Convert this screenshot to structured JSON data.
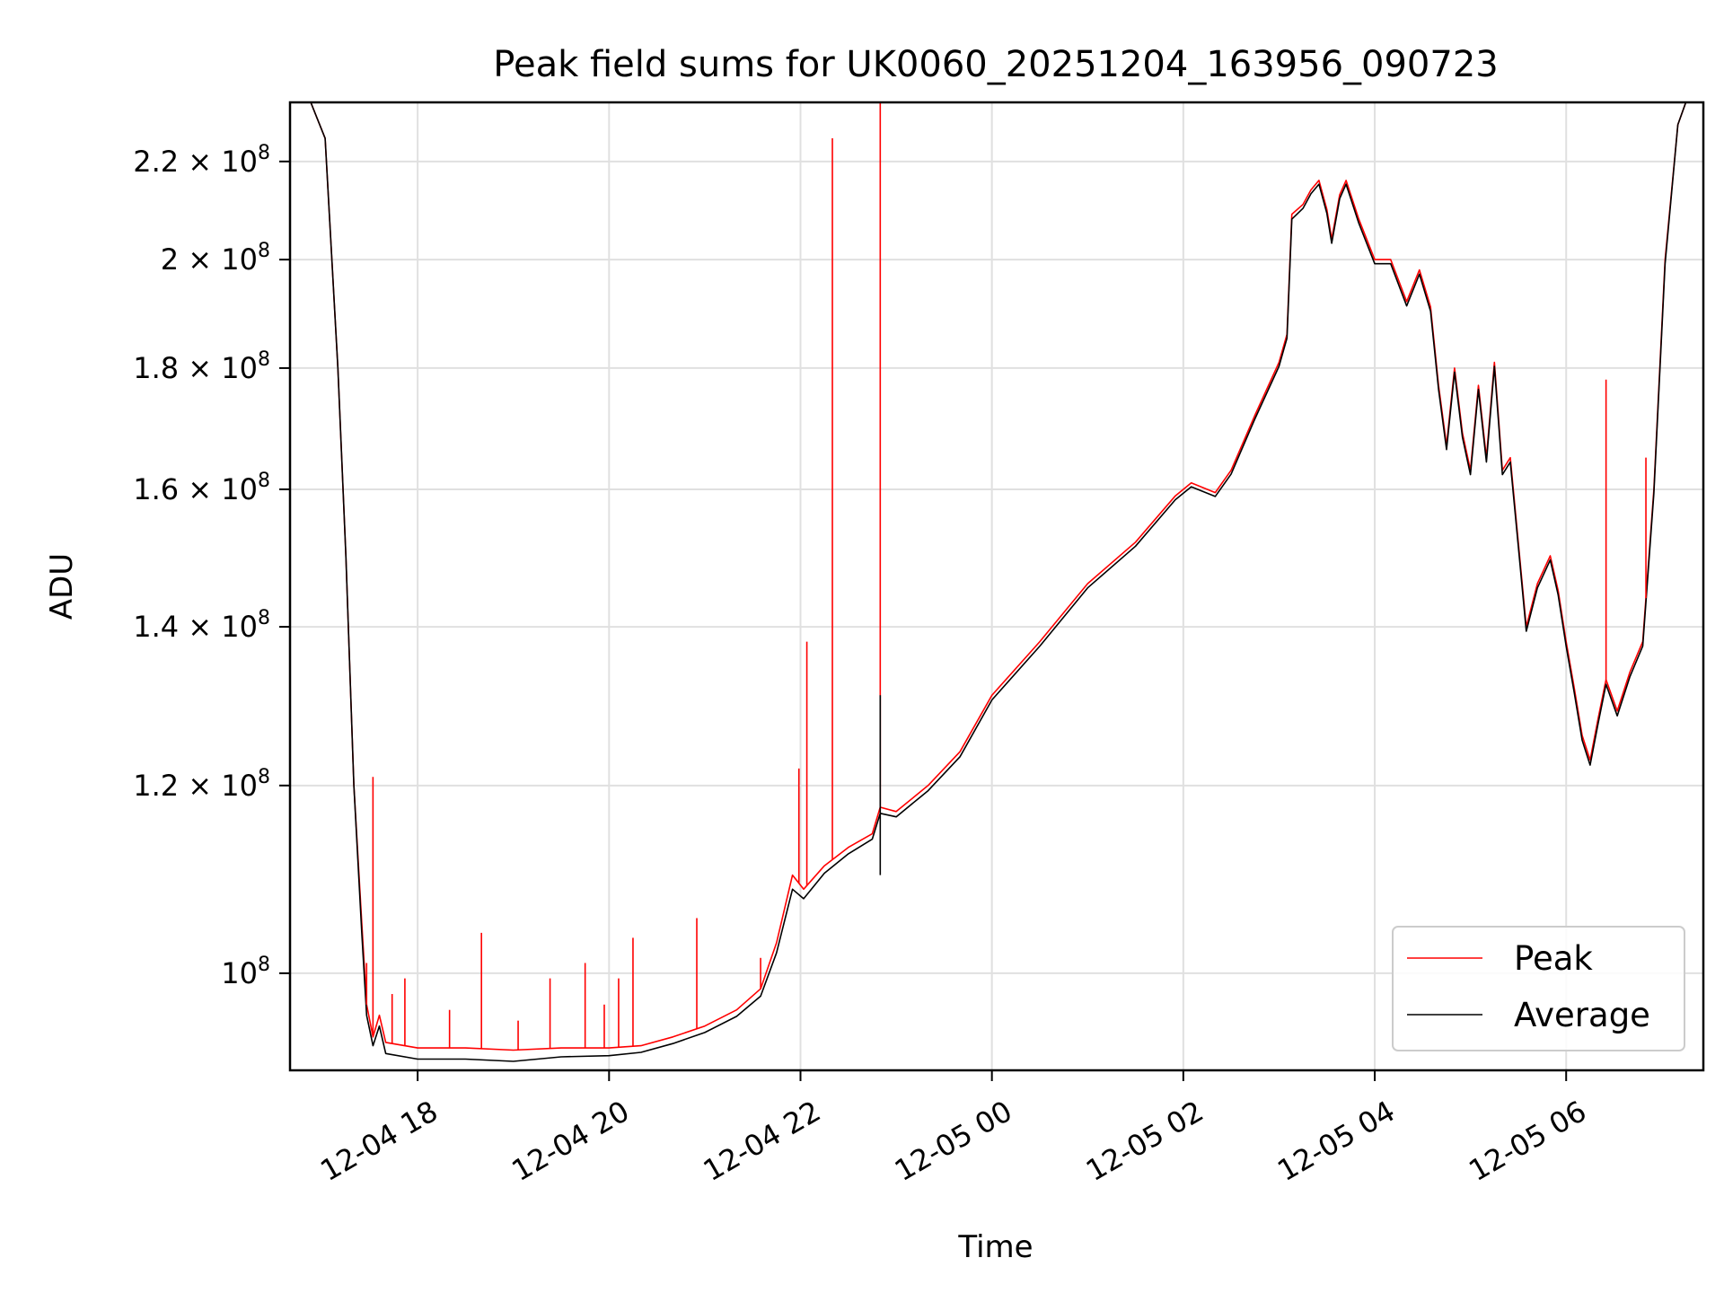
{
  "chart_data": {
    "type": "line",
    "title": "Peak field sums for UK0060_20251204_163956_090723",
    "xlabel": "Time",
    "ylabel": "ADU",
    "yscale": "log",
    "grid": true,
    "legend_position": "lower right",
    "x_range": [
      "2025-12-04 16:40",
      "2025-12-05 07:26"
    ],
    "ylim": [
      91000000,
      233000000
    ],
    "x_ticks": [
      {
        "value": "2025-12-04 18:00",
        "label": "12-04 18"
      },
      {
        "value": "2025-12-04 20:00",
        "label": "12-04 20"
      },
      {
        "value": "2025-12-04 22:00",
        "label": "12-04 22"
      },
      {
        "value": "2025-12-05 00:00",
        "label": "12-05 00"
      },
      {
        "value": "2025-12-05 02:00",
        "label": "12-05 02"
      },
      {
        "value": "2025-12-05 04:00",
        "label": "12-05 04"
      },
      {
        "value": "2025-12-05 06:00",
        "label": "12-05 06"
      }
    ],
    "y_ticks": [
      {
        "value": 100000000,
        "base": "10",
        "exp": "8"
      },
      {
        "value": 120000000,
        "base": "1.2 × 10",
        "exp": "8"
      },
      {
        "value": 140000000,
        "base": "1.4 × 10",
        "exp": "8"
      },
      {
        "value": 160000000,
        "base": "1.6 × 10",
        "exp": "8"
      },
      {
        "value": 180000000,
        "base": "1.8 × 10",
        "exp": "8"
      },
      {
        "value": 200000000,
        "base": "2 × 10",
        "exp": "8"
      },
      {
        "value": 220000000,
        "base": "2.2 × 10",
        "exp": "8"
      }
    ],
    "series": [
      {
        "name": "Peak",
        "color": "#ff0000",
        "points": [
          [
            "2025-12-04 16:40",
            233000000
          ],
          [
            "2025-12-04 16:53",
            233000000
          ],
          [
            "2025-12-04 17:02",
            225000000
          ],
          [
            "2025-12-04 17:10",
            180000000
          ],
          [
            "2025-12-04 17:15",
            150000000
          ],
          [
            "2025-12-04 17:20",
            120000000
          ],
          [
            "2025-12-04 17:25",
            105000000
          ],
          [
            "2025-12-04 17:28",
            97000000
          ],
          [
            "2025-12-04 17:32",
            94000000
          ],
          [
            "2025-12-04 17:36",
            96000000
          ],
          [
            "2025-12-04 17:40",
            93500000
          ],
          [
            "2025-12-04 18:00",
            93000000
          ],
          [
            "2025-12-04 18:30",
            93000000
          ],
          [
            "2025-12-04 19:00",
            92800000
          ],
          [
            "2025-12-04 19:30",
            93000000
          ],
          [
            "2025-12-04 20:00",
            93000000
          ],
          [
            "2025-12-04 20:20",
            93200000
          ],
          [
            "2025-12-04 20:40",
            94000000
          ],
          [
            "2025-12-04 21:00",
            95000000
          ],
          [
            "2025-12-04 21:20",
            96500000
          ],
          [
            "2025-12-04 21:35",
            98500000
          ],
          [
            "2025-12-04 21:45",
            103000000
          ],
          [
            "2025-12-04 21:55",
            110000000
          ],
          [
            "2025-12-04 22:02",
            108500000
          ],
          [
            "2025-12-04 22:15",
            111000000
          ],
          [
            "2025-12-04 22:30",
            113000000
          ],
          [
            "2025-12-04 22:45",
            114500000
          ],
          [
            "2025-12-04 22:50",
            117500000
          ],
          [
            "2025-12-04 23:00",
            117000000
          ],
          [
            "2025-12-04 23:20",
            120000000
          ],
          [
            "2025-12-04 23:40",
            124000000
          ],
          [
            "2025-12-05 00:00",
            131000000
          ],
          [
            "2025-12-05 00:30",
            138000000
          ],
          [
            "2025-12-05 01:00",
            146000000
          ],
          [
            "2025-12-05 01:30",
            152000000
          ],
          [
            "2025-12-05 01:55",
            159000000
          ],
          [
            "2025-12-05 02:05",
            161000000
          ],
          [
            "2025-12-05 02:20",
            159500000
          ],
          [
            "2025-12-05 02:30",
            163000000
          ],
          [
            "2025-12-05 02:45",
            172000000
          ],
          [
            "2025-12-05 03:00",
            181000000
          ],
          [
            "2025-12-05 03:05",
            186000000
          ],
          [
            "2025-12-05 03:08",
            209000000
          ],
          [
            "2025-12-05 03:15",
            211000000
          ],
          [
            "2025-12-05 03:20",
            214000000
          ],
          [
            "2025-12-05 03:25",
            216000000
          ],
          [
            "2025-12-05 03:30",
            210000000
          ],
          [
            "2025-12-05 03:33",
            204000000
          ],
          [
            "2025-12-05 03:38",
            213000000
          ],
          [
            "2025-12-05 03:42",
            216000000
          ],
          [
            "2025-12-05 03:50",
            208000000
          ],
          [
            "2025-12-05 04:00",
            200000000
          ],
          [
            "2025-12-05 04:10",
            200000000
          ],
          [
            "2025-12-05 04:20",
            192000000
          ],
          [
            "2025-12-05 04:28",
            198000000
          ],
          [
            "2025-12-05 04:35",
            191000000
          ],
          [
            "2025-12-05 04:40",
            177000000
          ],
          [
            "2025-12-05 04:45",
            167000000
          ],
          [
            "2025-12-05 04:50",
            180000000
          ],
          [
            "2025-12-05 04:55",
            169000000
          ],
          [
            "2025-12-05 05:00",
            163000000
          ],
          [
            "2025-12-05 05:05",
            177000000
          ],
          [
            "2025-12-05 05:10",
            165000000
          ],
          [
            "2025-12-05 05:15",
            181000000
          ],
          [
            "2025-12-05 05:20",
            163000000
          ],
          [
            "2025-12-05 05:25",
            165000000
          ],
          [
            "2025-12-05 05:30",
            152000000
          ],
          [
            "2025-12-05 05:35",
            140000000
          ],
          [
            "2025-12-05 05:42",
            146000000
          ],
          [
            "2025-12-05 05:50",
            150000000
          ],
          [
            "2025-12-05 05:55",
            145000000
          ],
          [
            "2025-12-05 06:00",
            138000000
          ],
          [
            "2025-12-05 06:05",
            132000000
          ],
          [
            "2025-12-05 06:10",
            126000000
          ],
          [
            "2025-12-05 06:15",
            123000000
          ],
          [
            "2025-12-05 06:20",
            128000000
          ],
          [
            "2025-12-05 06:25",
            133000000
          ],
          [
            "2025-12-05 06:32",
            129000000
          ],
          [
            "2025-12-05 06:40",
            134000000
          ],
          [
            "2025-12-05 06:48",
            138000000
          ],
          [
            "2025-12-05 06:55",
            160000000
          ],
          [
            "2025-12-05 07:02",
            200000000
          ],
          [
            "2025-12-05 07:10",
            228000000
          ],
          [
            "2025-12-05 07:15",
            233000000
          ],
          [
            "2025-12-05 07:26",
            233000000
          ]
        ]
      },
      {
        "name": "Average",
        "color": "#000000",
        "points": [
          [
            "2025-12-04 16:40",
            233000000
          ],
          [
            "2025-12-04 16:53",
            233000000
          ],
          [
            "2025-12-04 17:02",
            225000000
          ],
          [
            "2025-12-04 17:10",
            180000000
          ],
          [
            "2025-12-04 17:15",
            150000000
          ],
          [
            "2025-12-04 17:20",
            120000000
          ],
          [
            "2025-12-04 17:25",
            104000000
          ],
          [
            "2025-12-04 17:28",
            96000000
          ],
          [
            "2025-12-04 17:32",
            93200000
          ],
          [
            "2025-12-04 17:36",
            95000000
          ],
          [
            "2025-12-04 17:40",
            92500000
          ],
          [
            "2025-12-04 18:00",
            92000000
          ],
          [
            "2025-12-04 18:30",
            92000000
          ],
          [
            "2025-12-04 19:00",
            91800000
          ],
          [
            "2025-12-04 19:30",
            92200000
          ],
          [
            "2025-12-04 20:00",
            92300000
          ],
          [
            "2025-12-04 20:20",
            92600000
          ],
          [
            "2025-12-04 20:40",
            93400000
          ],
          [
            "2025-12-04 21:00",
            94400000
          ],
          [
            "2025-12-04 21:20",
            95900000
          ],
          [
            "2025-12-04 21:35",
            97800000
          ],
          [
            "2025-12-04 21:45",
            102000000
          ],
          [
            "2025-12-04 21:55",
            108500000
          ],
          [
            "2025-12-04 22:02",
            107500000
          ],
          [
            "2025-12-04 22:15",
            110200000
          ],
          [
            "2025-12-04 22:30",
            112300000
          ],
          [
            "2025-12-04 22:45",
            113900000
          ],
          [
            "2025-12-04 22:50",
            116800000
          ],
          [
            "2025-12-04 23:00",
            116400000
          ],
          [
            "2025-12-04 23:20",
            119400000
          ],
          [
            "2025-12-04 23:40",
            123400000
          ],
          [
            "2025-12-05 00:00",
            130400000
          ],
          [
            "2025-12-05 00:30",
            137400000
          ],
          [
            "2025-12-05 01:00",
            145400000
          ],
          [
            "2025-12-05 01:30",
            151400000
          ],
          [
            "2025-12-05 01:55",
            158400000
          ],
          [
            "2025-12-05 02:05",
            160400000
          ],
          [
            "2025-12-05 02:20",
            158900000
          ],
          [
            "2025-12-05 02:30",
            162400000
          ],
          [
            "2025-12-05 02:45",
            171400000
          ],
          [
            "2025-12-05 03:00",
            180300000
          ],
          [
            "2025-12-05 03:05",
            185300000
          ],
          [
            "2025-12-05 03:08",
            208000000
          ],
          [
            "2025-12-05 03:15",
            210200000
          ],
          [
            "2025-12-05 03:20",
            213200000
          ],
          [
            "2025-12-05 03:25",
            215200000
          ],
          [
            "2025-12-05 03:30",
            209200000
          ],
          [
            "2025-12-05 03:33",
            203200000
          ],
          [
            "2025-12-05 03:38",
            212200000
          ],
          [
            "2025-12-05 03:42",
            215200000
          ],
          [
            "2025-12-05 03:50",
            207200000
          ],
          [
            "2025-12-05 04:00",
            199200000
          ],
          [
            "2025-12-05 04:10",
            199200000
          ],
          [
            "2025-12-05 04:20",
            191200000
          ],
          [
            "2025-12-05 04:28",
            197200000
          ],
          [
            "2025-12-05 04:35",
            190200000
          ],
          [
            "2025-12-05 04:40",
            176300000
          ],
          [
            "2025-12-05 04:45",
            166300000
          ],
          [
            "2025-12-05 04:50",
            179300000
          ],
          [
            "2025-12-05 04:55",
            168300000
          ],
          [
            "2025-12-05 05:00",
            162300000
          ],
          [
            "2025-12-05 05:05",
            176300000
          ],
          [
            "2025-12-05 05:10",
            164300000
          ],
          [
            "2025-12-05 05:15",
            180300000
          ],
          [
            "2025-12-05 05:20",
            162300000
          ],
          [
            "2025-12-05 05:25",
            164300000
          ],
          [
            "2025-12-05 05:30",
            151400000
          ],
          [
            "2025-12-05 05:35",
            139400000
          ],
          [
            "2025-12-05 05:42",
            145400000
          ],
          [
            "2025-12-05 05:50",
            149400000
          ],
          [
            "2025-12-05 05:55",
            144400000
          ],
          [
            "2025-12-05 06:00",
            137400000
          ],
          [
            "2025-12-05 06:05",
            131400000
          ],
          [
            "2025-12-05 06:10",
            125400000
          ],
          [
            "2025-12-05 06:15",
            122400000
          ],
          [
            "2025-12-05 06:20",
            127400000
          ],
          [
            "2025-12-05 06:25",
            132400000
          ],
          [
            "2025-12-05 06:32",
            128400000
          ],
          [
            "2025-12-05 06:40",
            133400000
          ],
          [
            "2025-12-05 06:48",
            137400000
          ],
          [
            "2025-12-05 06:55",
            159400000
          ],
          [
            "2025-12-05 07:02",
            199200000
          ],
          [
            "2025-12-05 07:10",
            228000000
          ],
          [
            "2025-12-05 07:15",
            233000000
          ],
          [
            "2025-12-05 07:26",
            233000000
          ]
        ]
      }
    ],
    "spikes": [
      {
        "series": "Peak",
        "time": "2025-12-04 17:28",
        "value": 101000000
      },
      {
        "series": "Peak",
        "time": "2025-12-04 17:32",
        "value": 121000000
      },
      {
        "series": "Peak",
        "time": "2025-12-04 17:44",
        "value": 98000000
      },
      {
        "series": "Peak",
        "time": "2025-12-04 17:52",
        "value": 99500000
      },
      {
        "series": "Peak",
        "time": "2025-12-04 18:20",
        "value": 96500000
      },
      {
        "series": "Peak",
        "time": "2025-12-04 18:40",
        "value": 104000000
      },
      {
        "series": "Peak",
        "time": "2025-12-04 19:03",
        "value": 95500000
      },
      {
        "series": "Peak",
        "time": "2025-12-04 19:23",
        "value": 99500000
      },
      {
        "series": "Peak",
        "time": "2025-12-04 19:45",
        "value": 101000000
      },
      {
        "series": "Peak",
        "time": "2025-12-04 19:57",
        "value": 97000000
      },
      {
        "series": "Peak",
        "time": "2025-12-04 20:06",
        "value": 99500000
      },
      {
        "series": "Peak",
        "time": "2025-12-04 20:15",
        "value": 103500000
      },
      {
        "series": "Peak",
        "time": "2025-12-04 20:55",
        "value": 105500000
      },
      {
        "series": "Peak",
        "time": "2025-12-04 21:35",
        "value": 101500000
      },
      {
        "series": "Peak",
        "time": "2025-12-04 21:59",
        "value": 122000000
      },
      {
        "series": "Peak",
        "time": "2025-12-04 22:04",
        "value": 138000000
      },
      {
        "series": "Peak",
        "time": "2025-12-04 22:20",
        "value": 225000000
      },
      {
        "series": "Peak",
        "time": "2025-12-04 22:50",
        "value": 233000000
      },
      {
        "series": "Average",
        "time": "2025-12-04 22:50",
        "value": 131000000
      },
      {
        "series": "Average",
        "time": "2025-12-04 22:50",
        "value": 110000000,
        "direction": "down"
      },
      {
        "series": "Peak",
        "time": "2025-12-05 06:25",
        "value": 178000000
      },
      {
        "series": "Peak",
        "time": "2025-12-05 06:50",
        "value": 165000000
      }
    ]
  }
}
